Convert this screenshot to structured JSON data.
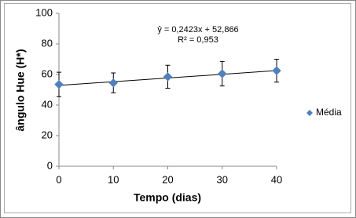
{
  "chart_data": {
    "type": "scatter",
    "x": [
      0,
      10,
      20,
      30,
      40
    ],
    "series": [
      {
        "name": "Média",
        "color": "#4f81bd",
        "values": [
          53.5,
          54.5,
          58.5,
          60.5,
          62.5
        ],
        "errors": [
          8,
          6.5,
          7.5,
          8,
          7.5
        ]
      }
    ],
    "trendline": {
      "slope": 0.2423,
      "intercept": 52.866,
      "equation": "ŷ = 0,2423x + 52,866",
      "r2_label": "R² = 0,953"
    },
    "xlabel": "Tempo (dias)",
    "ylabel": "ângulo Hue (H*)",
    "xlim": [
      0,
      40
    ],
    "xticks": [
      0,
      10,
      20,
      30,
      40
    ],
    "ylim": [
      0,
      100
    ],
    "yticks": [
      0,
      20,
      40,
      60,
      80,
      100
    ],
    "grid": false,
    "legend": "right"
  }
}
